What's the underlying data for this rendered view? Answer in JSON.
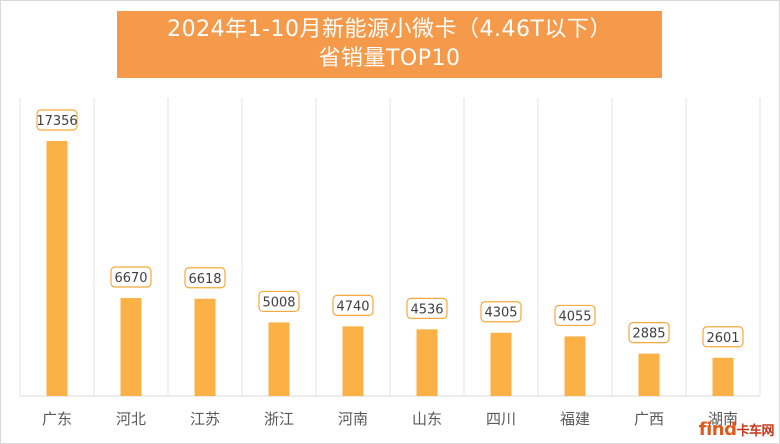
{
  "chart_data": {
    "type": "bar",
    "title": "2024年1-10月新能源小微卡（4.46T以下）",
    "subtitle": "省销量TOP10",
    "categories": [
      "广东",
      "河北",
      "江苏",
      "浙江",
      "河南",
      "山东",
      "四川",
      "福建",
      "广西",
      "湖南"
    ],
    "values": [
      17356,
      6670,
      6618,
      5008,
      4740,
      4536,
      4305,
      4055,
      2885,
      2601
    ],
    "ylim": [
      0,
      20000
    ],
    "grid": "vertical-separators",
    "bar_color": "#fbb145",
    "label_border_color": "#f5a93a",
    "title_bg": "#f59a4a"
  },
  "watermark": {
    "logo_text": "find",
    "cn_text": "卡车网"
  }
}
